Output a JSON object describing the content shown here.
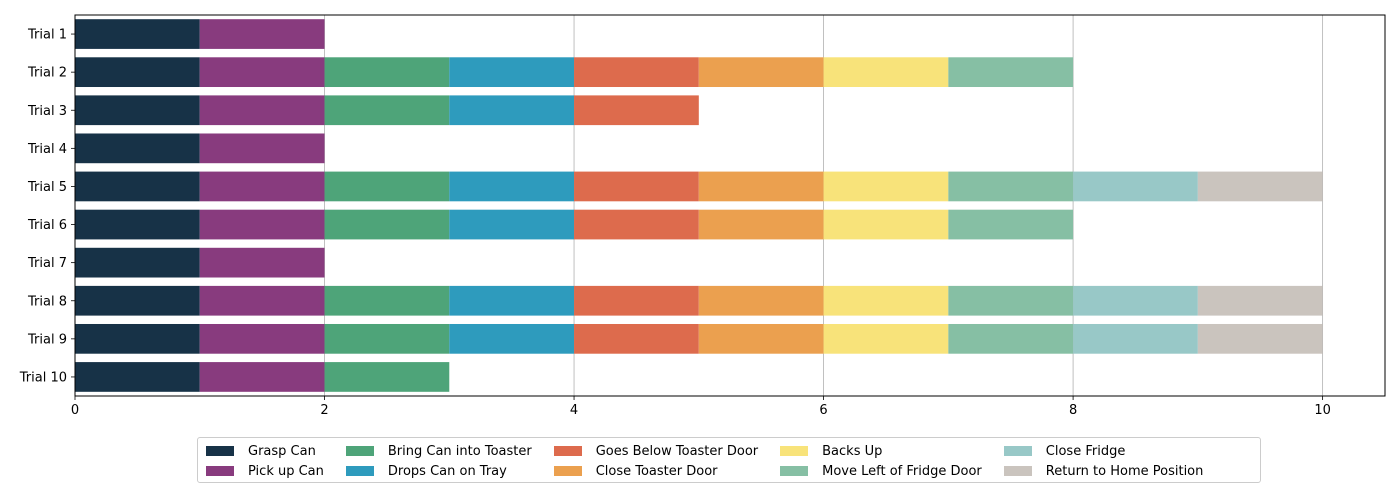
{
  "chart_data": {
    "type": "bar",
    "orientation": "horizontal",
    "stacked": true,
    "categories": [
      "Trial 1",
      "Trial 2",
      "Trial 3",
      "Trial 4",
      "Trial 5",
      "Trial 6",
      "Trial 7",
      "Trial 8",
      "Trial 9",
      "Trial 10"
    ],
    "series": [
      {
        "name": "Grasp Can",
        "color": "#173247",
        "values": [
          1,
          1,
          1,
          1,
          1,
          1,
          1,
          1,
          1,
          1
        ]
      },
      {
        "name": "Pick up Can",
        "color": "#883B7E",
        "values": [
          1,
          1,
          1,
          1,
          1,
          1,
          1,
          1,
          1,
          1
        ]
      },
      {
        "name": "Bring Can into Toaster",
        "color": "#4EA479",
        "values": [
          0,
          1,
          1,
          0,
          1,
          1,
          0,
          1,
          1,
          1
        ]
      },
      {
        "name": "Drops Can on Tray",
        "color": "#2E9BBD",
        "values": [
          0,
          1,
          1,
          0,
          1,
          1,
          0,
          1,
          1,
          0
        ]
      },
      {
        "name": "Goes Below Toaster Door",
        "color": "#DD6B4D",
        "values": [
          0,
          1,
          1,
          0,
          1,
          1,
          0,
          1,
          1,
          0
        ]
      },
      {
        "name": "Close Toaster Door",
        "color": "#EBA04F",
        "values": [
          0,
          1,
          0,
          0,
          1,
          1,
          0,
          1,
          1,
          0
        ]
      },
      {
        "name": "Backs Up",
        "color": "#F8E37A",
        "values": [
          0,
          1,
          0,
          0,
          1,
          1,
          0,
          1,
          1,
          0
        ]
      },
      {
        "name": "Move Left of Fridge Door",
        "color": "#86BFA4",
        "values": [
          0,
          1,
          0,
          0,
          1,
          1,
          0,
          1,
          1,
          0
        ]
      },
      {
        "name": "Close Fridge",
        "color": "#98C8C7",
        "values": [
          0,
          0,
          0,
          0,
          1,
          0,
          0,
          1,
          1,
          0
        ]
      },
      {
        "name": "Return to Home Position",
        "color": "#CAC4BE",
        "values": [
          0,
          0,
          0,
          0,
          1,
          0,
          0,
          1,
          1,
          0
        ]
      }
    ],
    "xlim": [
      0,
      10.5
    ],
    "xticks": [
      0,
      2,
      4,
      6,
      8,
      10
    ],
    "grid": "x",
    "legend": "bottom-center",
    "title": "",
    "xlabel": "",
    "ylabel": ""
  }
}
